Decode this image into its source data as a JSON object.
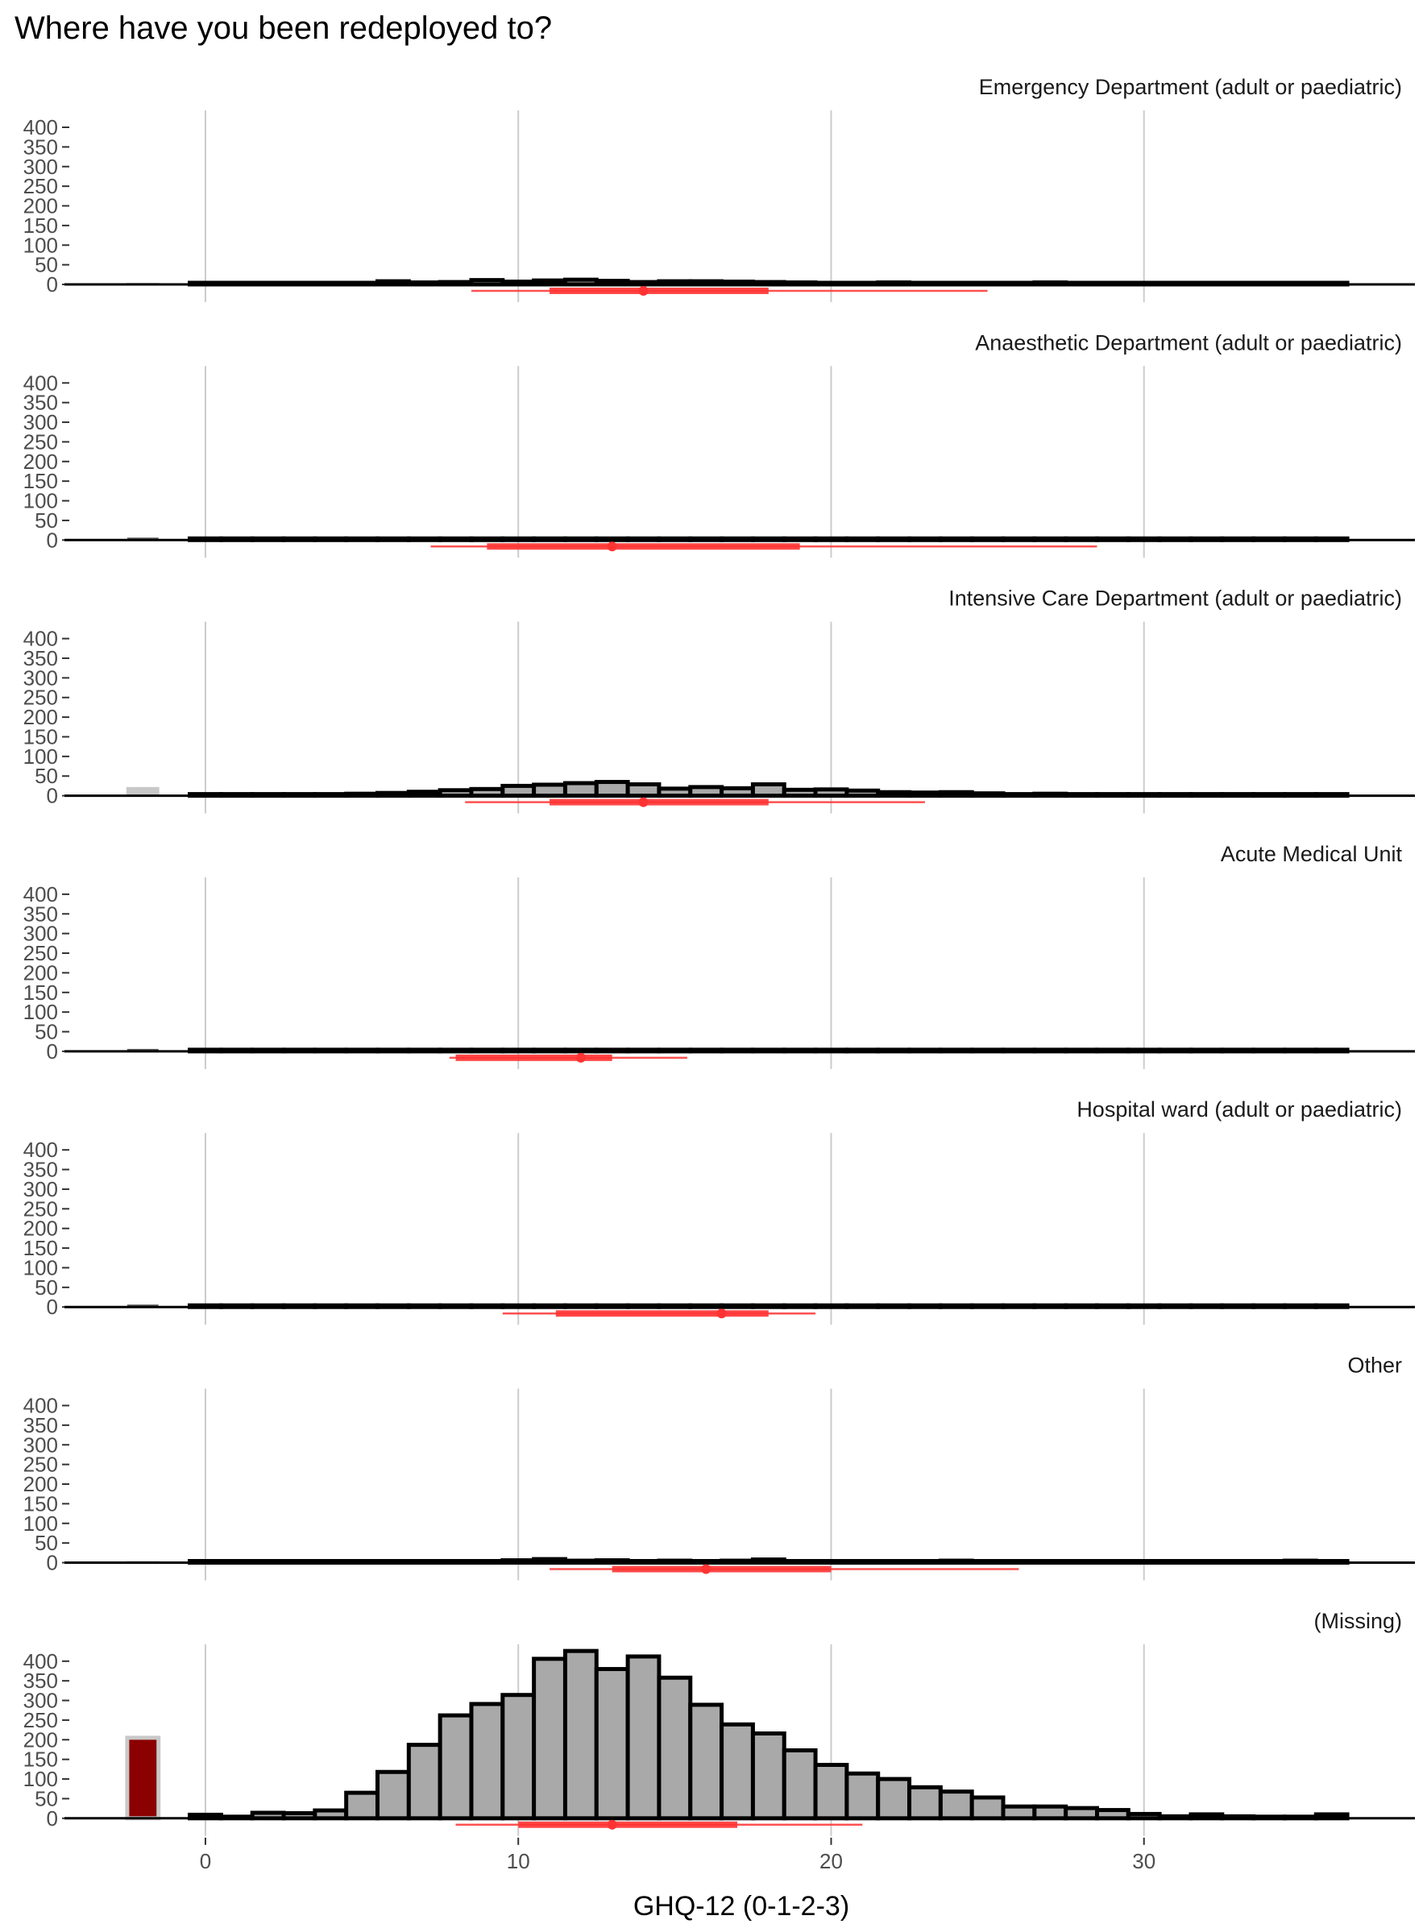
{
  "chart_data": {
    "type": "bar",
    "title": "Where have you been redeployed to?",
    "xlabel": "GHQ-12 (0-1-2-3)",
    "ylabel": "",
    "xlim": [
      -4.3,
      38.3
    ],
    "ylim": [
      0,
      450
    ],
    "x_ticks": [
      0,
      10,
      20,
      30
    ],
    "x_tick_labels": [
      "0",
      "10",
      "20",
      "30"
    ],
    "y_ticks": [
      0,
      50,
      100,
      150,
      200,
      250,
      300,
      350,
      400
    ],
    "y_tick_labels": [
      "0",
      "50",
      "100",
      "150",
      "200",
      "250",
      "300",
      "350",
      "400"
    ],
    "grid": "vertical major gridlines",
    "bin_width": 1,
    "bins": [
      0,
      1,
      2,
      3,
      4,
      5,
      6,
      7,
      8,
      9,
      10,
      11,
      12,
      13,
      14,
      15,
      16,
      17,
      18,
      19,
      20,
      21,
      22,
      23,
      24,
      25,
      26,
      27,
      28,
      29,
      30,
      31,
      32,
      33,
      34,
      35,
      36
    ],
    "missing_bin_x": -2,
    "colors": {
      "bar_fill": "#a9a9a9",
      "bar_outline": "#000000",
      "missing_fill_grey": "#c8c8c8",
      "missing_fill_highlight": "#8b0000",
      "summary_red": "#ff3333",
      "gridline": "#cccccc"
    },
    "panels": [
      {
        "label": "Emergency Department (adult or paediatric)",
        "values": [
          1,
          1,
          1,
          1,
          1,
          2,
          8,
          5,
          6,
          11,
          7,
          10,
          12,
          9,
          6,
          8,
          8,
          7,
          6,
          5,
          4,
          3,
          5,
          3,
          4,
          2,
          3,
          5,
          2,
          3,
          1,
          1,
          2,
          2,
          1,
          1,
          1
        ],
        "missing": 2,
        "summary": {
          "median": 14,
          "q1": 11,
          "q3": 18,
          "lower": 8.5,
          "upper": 25
        }
      },
      {
        "label": "Anaesthetic Department (adult or paediatric)",
        "values": [
          0,
          0,
          0,
          0,
          0,
          1,
          1,
          1,
          1,
          1,
          1,
          1,
          1,
          1,
          1,
          1,
          1,
          1,
          1,
          1,
          1,
          1,
          1,
          1,
          1,
          1,
          1,
          1,
          1,
          1,
          0,
          0,
          0,
          0,
          0,
          0,
          0
        ],
        "missing": 0,
        "summary": {
          "median": 13,
          "q1": 9,
          "q3": 19,
          "lower": 7.2,
          "upper": 28.5
        }
      },
      {
        "label": "Intensive Care Department (adult or paediatric)",
        "values": [
          1,
          1,
          1,
          2,
          3,
          5,
          7,
          10,
          14,
          17,
          25,
          28,
          32,
          35,
          29,
          18,
          22,
          19,
          29,
          15,
          16,
          13,
          9,
          8,
          9,
          6,
          3,
          5,
          3,
          2,
          1,
          1,
          1,
          1,
          1,
          1,
          1
        ],
        "missing": 20,
        "summary": {
          "median": 14,
          "q1": 11,
          "q3": 18,
          "lower": 8.3,
          "upper": 23
        }
      },
      {
        "label": "Acute Medical Unit",
        "values": [
          0,
          0,
          0,
          0,
          0,
          0,
          0,
          0,
          2,
          4,
          1,
          1,
          1,
          0,
          0,
          0,
          0,
          0,
          0,
          0,
          0,
          0,
          0,
          0,
          0,
          0,
          0,
          0,
          0,
          0,
          0,
          0,
          0,
          0,
          0,
          0,
          0
        ],
        "missing": 0,
        "summary": {
          "median": 12,
          "q1": 8,
          "q3": 13,
          "lower": 7.8,
          "upper": 15.4
        }
      },
      {
        "label": "Hospital ward (adult or paediatric)",
        "values": [
          0,
          0,
          0,
          0,
          0,
          0,
          0,
          1,
          1,
          3,
          3,
          2,
          1,
          2,
          1,
          3,
          2,
          1,
          3,
          1,
          2,
          3,
          1,
          1,
          0,
          1,
          0,
          0,
          0,
          0,
          0,
          0,
          0,
          0,
          0,
          0,
          0
        ],
        "missing": 0,
        "summary": {
          "median": 16.5,
          "q1": 11.2,
          "q3": 18,
          "lower": 9.5,
          "upper": 19.5
        }
      },
      {
        "label": "Other",
        "values": [
          1,
          1,
          1,
          1,
          1,
          1,
          1,
          2,
          4,
          4,
          6,
          9,
          5,
          6,
          4,
          5,
          4,
          5,
          8,
          4,
          3,
          3,
          4,
          2,
          5,
          3,
          4,
          2,
          3,
          2,
          2,
          2,
          1,
          1,
          1,
          5,
          1
        ],
        "missing": 2,
        "summary": {
          "median": 16,
          "q1": 13,
          "q3": 20,
          "lower": 11,
          "upper": 26
        }
      },
      {
        "label": "(Missing)",
        "values": [
          9,
          3,
          14,
          13,
          20,
          65,
          118,
          187,
          262,
          291,
          314,
          406,
          426,
          380,
          412,
          358,
          289,
          239,
          216,
          173,
          136,
          114,
          100,
          79,
          68,
          53,
          30,
          30,
          26,
          21,
          11,
          5,
          10,
          5,
          3,
          3,
          10
        ],
        "missing": 205,
        "summary": {
          "median": 13,
          "q1": 10,
          "q3": 17,
          "lower": 8,
          "upper": 21
        }
      }
    ]
  }
}
